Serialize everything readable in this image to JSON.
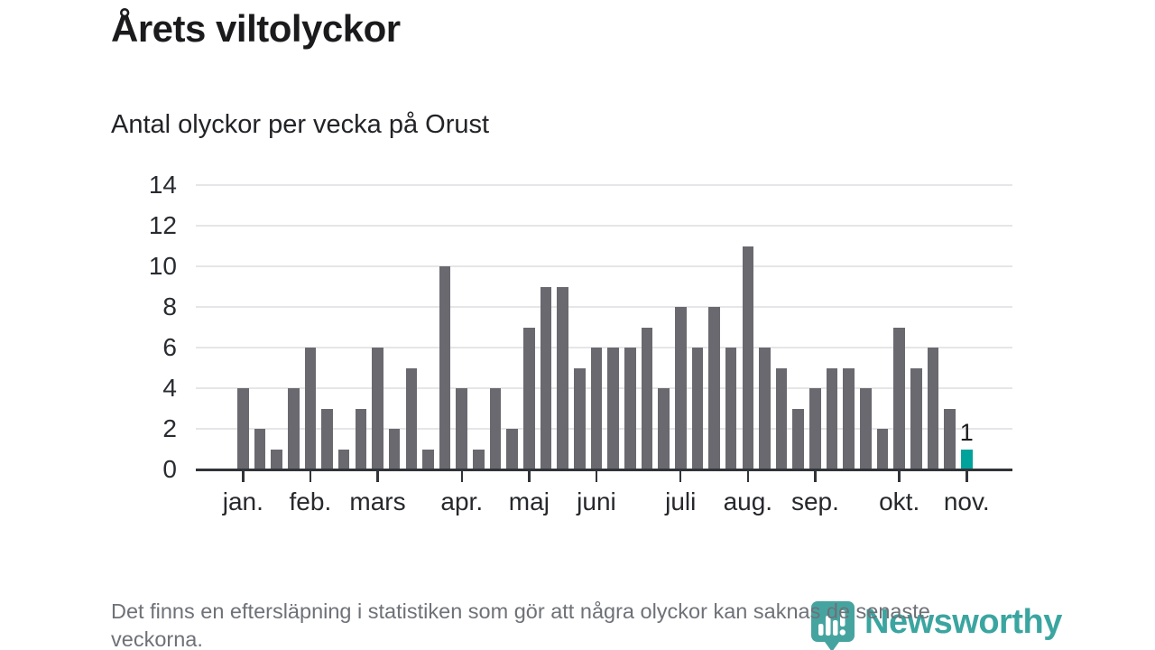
{
  "page": {
    "title": "Årets viltolyckor",
    "subtitle": "Antal olyckor per vecka på Orust",
    "footnote": "Det finns en eftersläpning i statistiken som gör att några olyckor kan saknas de senaste veckorna.",
    "brand_name": "Newsworthy"
  },
  "colors": {
    "bar": "#69696f",
    "highlight": "#00a39b",
    "axis": "#303439",
    "grid": "#e6e6e8",
    "text_dark": "#1b1b1d",
    "muted_text": "#6e7177",
    "logo_teal": "#3ba5a0",
    "logo_pin": "#46a4a0"
  },
  "chart_data": {
    "type": "bar",
    "title": "Årets viltolyckor",
    "subtitle": "Antal olyckor per vecka på Orust",
    "x_unit": "vecka",
    "values": [
      4,
      2,
      1,
      4,
      6,
      3,
      1,
      3,
      6,
      2,
      5,
      1,
      10,
      4,
      1,
      4,
      2,
      7,
      9,
      9,
      5,
      6,
      6,
      6,
      7,
      4,
      8,
      6,
      8,
      6,
      11,
      6,
      5,
      3,
      4,
      5,
      5,
      4,
      2,
      7,
      5,
      6,
      3,
      1
    ],
    "highlight_index": 43,
    "highlight_value_label": "1",
    "y_ticks": [
      0,
      2,
      4,
      6,
      8,
      10,
      12,
      14
    ],
    "ylim": [
      0,
      14
    ],
    "grid": true,
    "legend": "none",
    "month_ticks": [
      {
        "label": "jan.",
        "index": 0
      },
      {
        "label": "feb.",
        "index": 4
      },
      {
        "label": "mars",
        "index": 8
      },
      {
        "label": "apr.",
        "index": 13
      },
      {
        "label": "maj",
        "index": 17
      },
      {
        "label": "juni",
        "index": 21
      },
      {
        "label": "juli",
        "index": 26
      },
      {
        "label": "aug.",
        "index": 30
      },
      {
        "label": "sep.",
        "index": 34
      },
      {
        "label": "okt.",
        "index": 39
      },
      {
        "label": "nov.",
        "index": 43
      }
    ]
  }
}
